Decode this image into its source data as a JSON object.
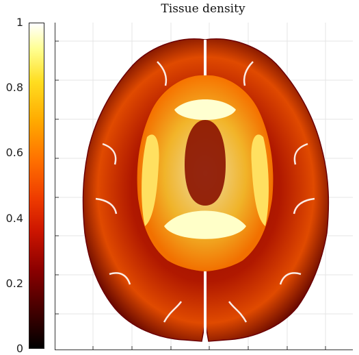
{
  "title": "Tissue density",
  "colorbar": {
    "ticks": [
      "1",
      "0.8",
      "0.6",
      "0.4",
      "0.2",
      "0"
    ],
    "colormap": "hot",
    "range": [
      0,
      1
    ]
  },
  "image": {
    "subject": "axial brain MRI slice",
    "grid": "on"
  }
}
